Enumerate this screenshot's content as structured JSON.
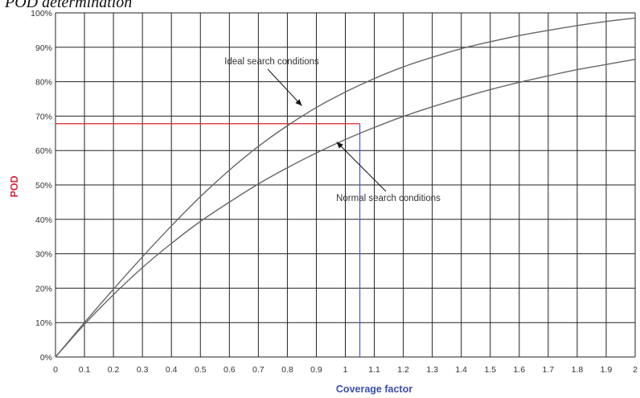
{
  "heading": ". POD determination",
  "chart_data": {
    "type": "line",
    "title": "",
    "xlabel": "Coverage factor",
    "ylabel": "POD",
    "xlim": [
      0,
      2
    ],
    "ylim": [
      0,
      100
    ],
    "x_ticks": [
      "0",
      "0.1",
      "0.2",
      "0.3",
      "0.4",
      "0.5",
      "0.6",
      "0.7",
      "0.8",
      "0.9",
      "1",
      "1.1",
      "1.2",
      "1.3",
      "1.4",
      "1.5",
      "1.6",
      "1.7",
      "1.8",
      "1.9",
      "2"
    ],
    "y_ticks": [
      "0%",
      "10%",
      "20%",
      "30%",
      "40%",
      "50%",
      "60%",
      "70%",
      "80%",
      "90%",
      "100%"
    ],
    "grid": true,
    "series": [
      {
        "x": [
          0,
          0.1,
          0.2,
          0.3,
          0.4,
          0.5,
          0.6,
          0.7,
          0.8,
          0.9,
          1.0,
          1.1,
          1.2,
          1.3,
          1.4,
          1.5,
          1.6,
          1.7,
          1.8,
          1.9,
          2.0
        ],
        "values": [
          0,
          9.5,
          18.1,
          26,
          33,
          39.4,
          45,
          50.3,
          55,
          59.3,
          63.2,
          66.7,
          69.9,
          72.7,
          75.3,
          77.7,
          79.8,
          81.7,
          83.5,
          85,
          86.5
        ]
      },
      {
        "x": [
          0,
          0.1,
          0.2,
          0.3,
          0.4,
          0.5,
          0.6,
          0.7,
          0.8,
          0.9,
          1.0,
          1.1,
          1.2,
          1.3,
          1.4,
          1.5,
          1.6,
          1.7,
          1.8,
          1.9,
          2.0
        ],
        "values": [
          0,
          10,
          19.7,
          29.1,
          38.1,
          46.6,
          54.3,
          61.2,
          67.2,
          72.5,
          77,
          80.9,
          84.3,
          87.1,
          89.6,
          91.6,
          93.4,
          94.9,
          96.3,
          97.5,
          98.5
        ]
      }
    ],
    "annotations": [
      {
        "text": "Ideal search conditions",
        "target_series": 1,
        "arrow_to": [
          0.85,
          73
        ]
      },
      {
        "text": "Normal search conditions",
        "target_series": 0,
        "arrow_to": [
          0.97,
          62.5
        ]
      }
    ],
    "reference_lines": {
      "coverage_value": 1.05,
      "pod_value": 67.8,
      "horizontal_color": "#e0303a",
      "vertical_color": "#5a5ad6"
    },
    "colors": {
      "curves": "#666666",
      "grid": "#222222",
      "ylabel": "#d42b3a",
      "xlabel": "#3a4db0"
    }
  }
}
